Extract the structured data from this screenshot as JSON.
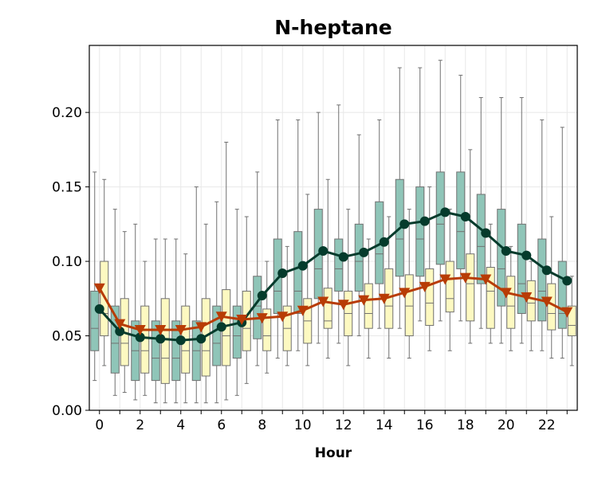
{
  "chart_data": {
    "type": "box",
    "title": "N-heptane",
    "xlabel": "Hour",
    "ylabel": "",
    "xlim": [
      -0.5,
      23.5
    ],
    "ylim": [
      0,
      0.245
    ],
    "x_ticks": [
      0,
      2,
      4,
      6,
      8,
      10,
      12,
      14,
      16,
      18,
      20,
      22
    ],
    "y_ticks": [
      0.0,
      0.05,
      0.1,
      0.15,
      0.2
    ],
    "y_tick_labels": [
      "0.00",
      "0.05",
      "0.10",
      "0.15",
      "0.20"
    ],
    "grid": true,
    "hours": [
      0,
      1,
      2,
      3,
      4,
      5,
      6,
      7,
      8,
      9,
      10,
      11,
      12,
      13,
      14,
      15,
      16,
      17,
      18,
      19,
      20,
      21,
      22,
      23
    ],
    "series": [
      {
        "color": "#8fc5b8",
        "line_color": "#053b2c",
        "marker": "circle",
        "boxes": [
          [
            0.02,
            0.04,
            0.055,
            0.08,
            0.16
          ],
          [
            0.01,
            0.025,
            0.045,
            0.07,
            0.135
          ],
          [
            0.007,
            0.02,
            0.04,
            0.06,
            0.125
          ],
          [
            0.005,
            0.02,
            0.035,
            0.06,
            0.115
          ],
          [
            0.005,
            0.02,
            0.035,
            0.06,
            0.115
          ],
          [
            0.005,
            0.02,
            0.04,
            0.06,
            0.15
          ],
          [
            0.005,
            0.03,
            0.045,
            0.07,
            0.14
          ],
          [
            0.01,
            0.035,
            0.05,
            0.07,
            0.135
          ],
          [
            0.03,
            0.048,
            0.07,
            0.09,
            0.16
          ],
          [
            0.035,
            0.065,
            0.08,
            0.115,
            0.195
          ],
          [
            0.04,
            0.065,
            0.08,
            0.12,
            0.195
          ],
          [
            0.045,
            0.075,
            0.095,
            0.135,
            0.2
          ],
          [
            0.045,
            0.08,
            0.095,
            0.115,
            0.205
          ],
          [
            0.05,
            0.08,
            0.1,
            0.125,
            0.185
          ],
          [
            0.055,
            0.085,
            0.105,
            0.14,
            0.195
          ],
          [
            0.055,
            0.09,
            0.115,
            0.155,
            0.23
          ],
          [
            0.06,
            0.09,
            0.115,
            0.15,
            0.23
          ],
          [
            0.06,
            0.098,
            0.125,
            0.16,
            0.235
          ],
          [
            0.06,
            0.095,
            0.12,
            0.16,
            0.225
          ],
          [
            0.055,
            0.085,
            0.11,
            0.145,
            0.21
          ],
          [
            0.045,
            0.07,
            0.095,
            0.135,
            0.21
          ],
          [
            0.045,
            0.065,
            0.085,
            0.125,
            0.21
          ],
          [
            0.04,
            0.06,
            0.08,
            0.115,
            0.195
          ],
          [
            0.035,
            0.055,
            0.065,
            0.1,
            0.19
          ]
        ],
        "means": [
          0.068,
          0.053,
          0.049,
          0.048,
          0.047,
          0.048,
          0.056,
          0.059,
          0.077,
          0.092,
          0.097,
          0.107,
          0.103,
          0.106,
          0.113,
          0.125,
          0.127,
          0.133,
          0.13,
          0.119,
          0.107,
          0.104,
          0.094,
          0.087
        ]
      },
      {
        "color": "#fdf9c1",
        "line_color": "#b83c05",
        "marker": "triangle-down",
        "boxes": [
          [
            0.03,
            0.05,
            0.065,
            0.1,
            0.155
          ],
          [
            0.012,
            0.03,
            0.045,
            0.075,
            0.12
          ],
          [
            0.01,
            0.025,
            0.04,
            0.07,
            0.1
          ],
          [
            0.005,
            0.018,
            0.035,
            0.075,
            0.115
          ],
          [
            0.005,
            0.025,
            0.04,
            0.07,
            0.105
          ],
          [
            0.005,
            0.023,
            0.04,
            0.075,
            0.125
          ],
          [
            0.007,
            0.03,
            0.05,
            0.081,
            0.18
          ],
          [
            0.018,
            0.04,
            0.055,
            0.08,
            0.13
          ],
          [
            0.025,
            0.04,
            0.05,
            0.068,
            0.1
          ],
          [
            0.03,
            0.04,
            0.055,
            0.07,
            0.11
          ],
          [
            0.03,
            0.045,
            0.06,
            0.075,
            0.145
          ],
          [
            0.035,
            0.055,
            0.06,
            0.082,
            0.155
          ],
          [
            0.03,
            0.05,
            0.065,
            0.08,
            0.135
          ],
          [
            0.035,
            0.055,
            0.065,
            0.085,
            0.115
          ],
          [
            0.035,
            0.055,
            0.07,
            0.095,
            0.13
          ],
          [
            0.035,
            0.05,
            0.07,
            0.091,
            0.135
          ],
          [
            0.04,
            0.057,
            0.072,
            0.095,
            0.15
          ],
          [
            0.04,
            0.066,
            0.075,
            0.1,
            0.135
          ],
          [
            0.045,
            0.06,
            0.085,
            0.105,
            0.175
          ],
          [
            0.045,
            0.055,
            0.08,
            0.096,
            0.125
          ],
          [
            0.04,
            0.055,
            0.07,
            0.09,
            0.11
          ],
          [
            0.04,
            0.06,
            0.072,
            0.087,
            0.1
          ],
          [
            0.035,
            0.054,
            0.065,
            0.085,
            0.13
          ],
          [
            0.03,
            0.05,
            0.057,
            0.07,
            0.09
          ]
        ],
        "means": [
          0.082,
          0.058,
          0.054,
          0.054,
          0.054,
          0.056,
          0.063,
          0.061,
          0.062,
          0.063,
          0.067,
          0.073,
          0.071,
          0.074,
          0.075,
          0.079,
          0.083,
          0.088,
          0.089,
          0.088,
          0.079,
          0.076,
          0.073,
          0.066
        ]
      }
    ]
  }
}
